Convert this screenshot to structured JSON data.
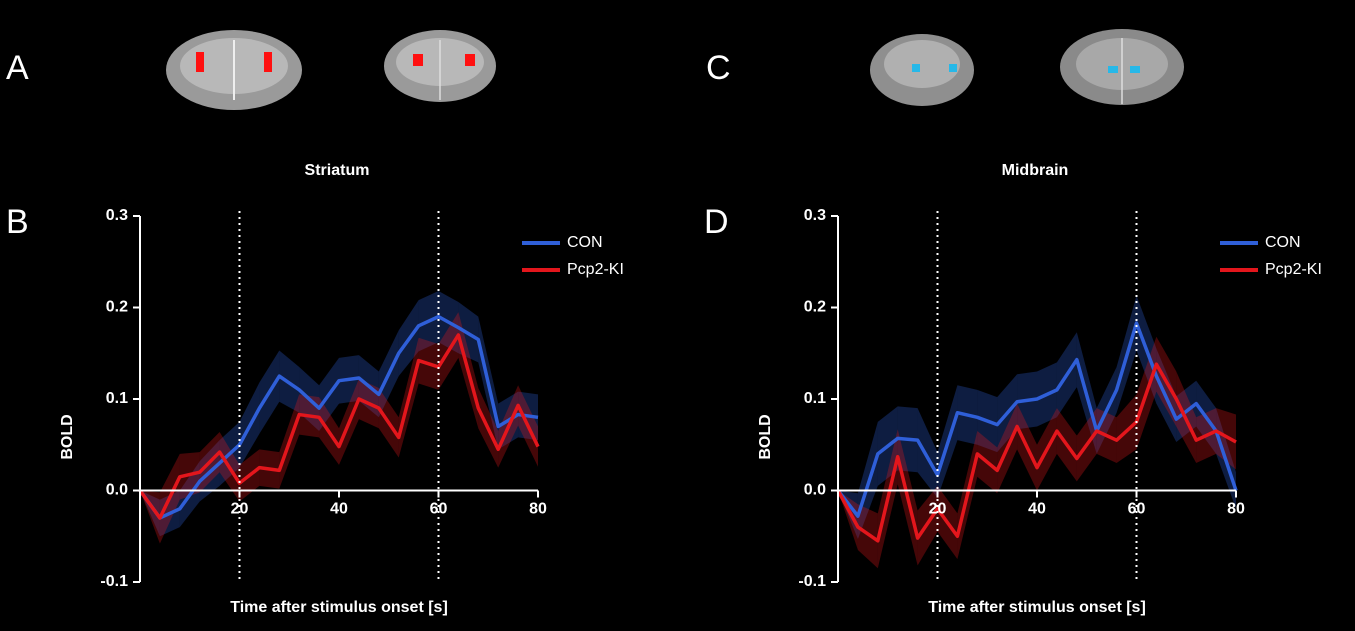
{
  "images": [
    {
      "panel": "A"
    },
    {
      "panel": "C"
    }
  ],
  "chart_data": [
    {
      "type": "line",
      "panel": "B",
      "title": "Striatum",
      "x_label": "Time after stimulus onset [s]",
      "y_label": "BOLD",
      "x": [
        0,
        4,
        8,
        12,
        16,
        20,
        24,
        28,
        32,
        36,
        40,
        44,
        48,
        52,
        56,
        60,
        64,
        68,
        72,
        76,
        80
      ],
      "xlim": [
        0,
        80
      ],
      "ylim": [
        -0.1,
        0.3
      ],
      "xticks": [
        20,
        40,
        60,
        80
      ],
      "yticks": [
        -0.1,
        {
          "value": 0,
          "label": "0.0"
        },
        0.1,
        0.2,
        0.3
      ],
      "vlines": [
        20,
        60
      ],
      "legend": "upper right",
      "series": [
        {
          "name": "CON",
          "color": "#2f5fd8",
          "values": [
            0,
            -0.03,
            -0.02,
            0.01,
            0.03,
            0.05,
            0.09,
            0.125,
            0.11,
            0.09,
            0.12,
            0.123,
            0.105,
            0.15,
            0.18,
            0.19,
            0.178,
            0.165,
            0.07,
            0.083,
            0.08
          ],
          "errors": [
            0,
            0.02,
            0.02,
            0.022,
            0.025,
            0.025,
            0.028,
            0.028,
            0.025,
            0.025,
            0.025,
            0.025,
            0.025,
            0.025,
            0.028,
            0.028,
            0.028,
            0.025,
            0.025,
            0.025,
            0.025
          ]
        },
        {
          "name": "Pcp2-KI",
          "color": "#e3161c",
          "values": [
            0,
            -0.03,
            0.015,
            0.02,
            0.042,
            0.008,
            0.025,
            0.022,
            0.083,
            0.08,
            0.048,
            0.1,
            0.09,
            0.058,
            0.142,
            0.135,
            0.17,
            0.09,
            0.045,
            0.093,
            0.048
          ],
          "errors": [
            0,
            0.028,
            0.025,
            0.022,
            0.022,
            0.02,
            0.02,
            0.02,
            0.022,
            0.022,
            0.02,
            0.022,
            0.022,
            0.022,
            0.025,
            0.025,
            0.025,
            0.022,
            0.02,
            0.022,
            0.022
          ]
        }
      ]
    },
    {
      "type": "line",
      "panel": "D",
      "title": "Midbrain",
      "x_label": "Time after stimulus onset [s]",
      "y_label": "BOLD",
      "x": [
        0,
        4,
        8,
        12,
        16,
        20,
        24,
        28,
        32,
        36,
        40,
        44,
        48,
        52,
        56,
        60,
        64,
        68,
        72,
        76,
        80
      ],
      "xlim": [
        0,
        80
      ],
      "ylim": [
        -0.1,
        0.3
      ],
      "xticks": [
        20,
        40,
        60,
        80
      ],
      "yticks": [
        -0.1,
        {
          "value": 0,
          "label": "0.0"
        },
        0.1,
        0.2,
        0.3
      ],
      "vlines": [
        20,
        60
      ],
      "legend": "upper right",
      "series": [
        {
          "name": "CON",
          "color": "#2f5fd8",
          "values": [
            0,
            -0.028,
            0.04,
            0.057,
            0.055,
            0.017,
            0.085,
            0.08,
            0.072,
            0.097,
            0.1,
            0.11,
            0.143,
            0.065,
            0.11,
            0.183,
            0.125,
            0.078,
            0.095,
            0.065,
            0
          ],
          "errors": [
            0,
            0.025,
            0.035,
            0.035,
            0.035,
            0.025,
            0.03,
            0.03,
            0.03,
            0.03,
            0.03,
            0.03,
            0.03,
            0.025,
            0.025,
            0.03,
            0.03,
            0.025,
            0.025,
            0.025,
            0.02
          ]
        },
        {
          "name": "Pcp2-KI",
          "color": "#e3161c",
          "values": [
            0,
            -0.04,
            -0.055,
            0.037,
            -0.052,
            -0.02,
            -0.05,
            0.04,
            0.022,
            0.07,
            0.025,
            0.065,
            0.035,
            0.065,
            0.055,
            0.075,
            0.138,
            0.1,
            0.055,
            0.065,
            0.053
          ],
          "errors": [
            0,
            0.025,
            0.03,
            0.03,
            0.03,
            0.025,
            0.025,
            0.025,
            0.025,
            0.025,
            0.025,
            0.025,
            0.025,
            0.025,
            0.025,
            0.03,
            0.03,
            0.03,
            0.025,
            0.025,
            0.03
          ]
        }
      ]
    }
  ]
}
